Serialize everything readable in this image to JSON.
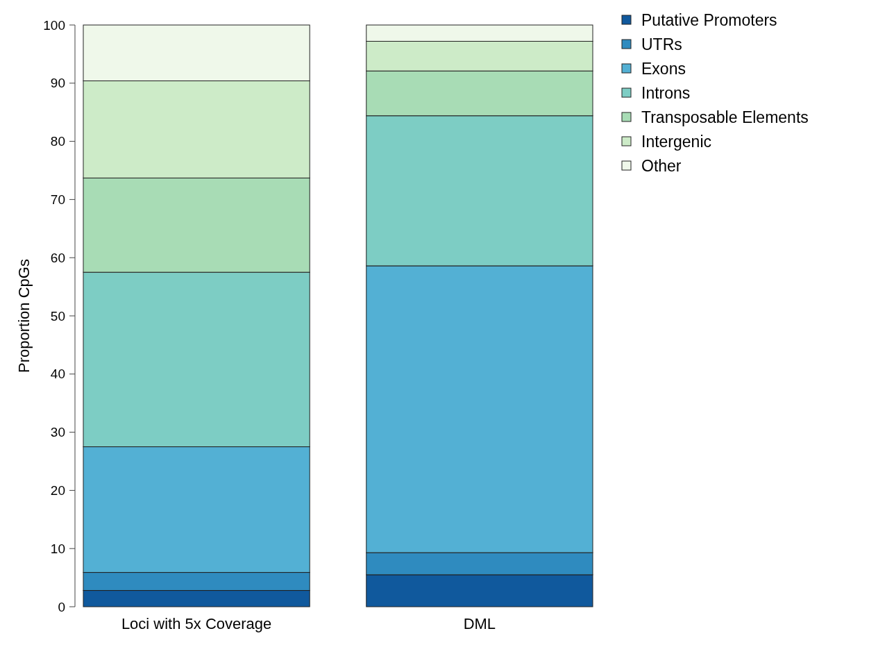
{
  "chart_data": {
    "type": "bar",
    "stacked": true,
    "ylabel": "Proportion CpGs",
    "categories": [
      "Loci with 5x Coverage",
      "DML"
    ],
    "ylim": [
      0,
      100
    ],
    "yticks": [
      0,
      10,
      20,
      30,
      40,
      50,
      60,
      70,
      80,
      90,
      100
    ],
    "legend": "top right",
    "grid": false,
    "series": [
      {
        "name": "Putative Promoters",
        "color": "#10599d",
        "values": [
          2.8,
          5.5
        ]
      },
      {
        "name": "UTRs",
        "color": "#2f8bbf",
        "values": [
          3.1,
          3.8
        ]
      },
      {
        "name": "Exons",
        "color": "#53b0d4",
        "values": [
          21.6,
          49.3
        ]
      },
      {
        "name": "Introns",
        "color": "#7dcdc4",
        "values": [
          30.0,
          25.8
        ]
      },
      {
        "name": "Transposable Elements",
        "color": "#a8dcb5",
        "values": [
          16.2,
          7.7
        ]
      },
      {
        "name": "Intergenic",
        "color": "#cdebc8",
        "values": [
          16.7,
          5.1
        ]
      },
      {
        "name": "Other",
        "color": "#eff8ea",
        "values": [
          9.6,
          2.8
        ]
      }
    ]
  }
}
